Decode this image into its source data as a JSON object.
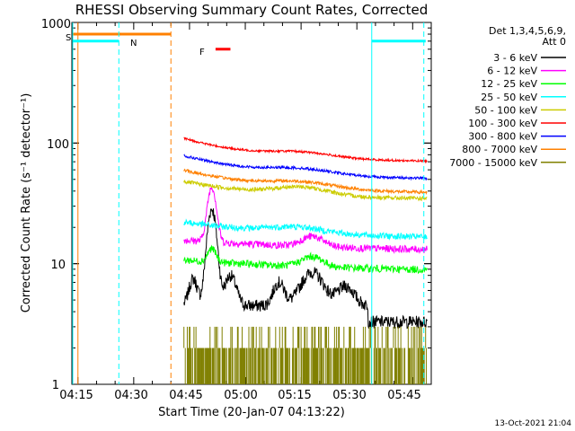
{
  "chart_data": {
    "type": "line",
    "title": "RHESSI Observing Summary Count Rates, Corrected",
    "xlabel": "Start Time (20-Jan-07 04:13:22)",
    "ylabel": "Corrected Count Rate (s⁻¹ detector⁻¹)",
    "x_tick_labels": [
      "04:15",
      "04:30",
      "04:45",
      "05:00",
      "05:15",
      "05:30",
      "05:45"
    ],
    "x_ticks_min": [
      15,
      30,
      45,
      60,
      75,
      90,
      105
    ],
    "x_range_min": [
      13.37,
      110
    ],
    "y_scale": "log",
    "y_range": [
      1,
      1000
    ],
    "y_tick_labels": [
      "1",
      "10",
      "100",
      "1000"
    ],
    "legend_header": [
      "Det 1,3,4,5,6,9,",
      "Att 0"
    ],
    "legend_placement": "right",
    "footer": "13-Oct-2021 21:04",
    "annotations": {
      "S": "S",
      "N": "N",
      "F": "F"
    },
    "colors": {
      "3-6": "#000000",
      "6-12": "#ff00ff",
      "12-25": "#00ff00",
      "25-50": "#00ffff",
      "50-100": "#cccc00",
      "100-300": "#ff0000",
      "300-800": "#0000ff",
      "800-7000": "#ff8000",
      "7000-15000": "#808000",
      "orange_line": "#ff8000",
      "cyan_line": "#00ffff"
    },
    "series": [
      {
        "name": "3 - 6 keV",
        "key": "3-6",
        "t_start": 43.5,
        "t_end": 109,
        "base": 6.0,
        "peak": 28,
        "note": "bursty, 4-9 range"
      },
      {
        "name": "6 - 12 keV",
        "key": "6-12",
        "t_start": 43.5,
        "t_end": 109,
        "base": 16,
        "peak": 44,
        "note": "declines to ~13"
      },
      {
        "name": "12 - 25 keV",
        "key": "12-25",
        "t_start": 43.5,
        "t_end": 109,
        "base": 11,
        "peak": 14,
        "note": "declines to ~9"
      },
      {
        "name": "25 - 50 keV",
        "key": "25-50",
        "t_start": 43.5,
        "t_end": 109,
        "base": 20,
        "peak": 25,
        "note": "declines to ~17"
      },
      {
        "name": "50 - 100 keV",
        "key": "50-100",
        "t_start": 43.5,
        "t_end": 109,
        "base": 40,
        "peak": 45,
        "note": "declines to ~35"
      },
      {
        "name": "100 - 300 keV",
        "key": "100-300",
        "t_start": 43.5,
        "t_end": 109,
        "base": 100,
        "peak": 110,
        "note": "declines to ~70"
      },
      {
        "name": "300 - 800 keV",
        "key": "300-800",
        "t_start": 43.5,
        "t_end": 109,
        "base": 75,
        "peak": 80,
        "note": "declines to ~50"
      },
      {
        "name": "800 - 7000 keV",
        "key": "800-7000",
        "t_start": 43.5,
        "t_end": 109,
        "base": 55,
        "peak": 60,
        "note": "declines to ~38"
      },
      {
        "name": "7000 - 15000 keV",
        "key": "7000-15000",
        "t_start": 43.5,
        "t_end": 109,
        "base": 2.0,
        "peak": 3.0,
        "note": "digitized 1-3 band"
      }
    ],
    "flags": {
      "saa_orange_level": 800,
      "night_cyan_level": 700,
      "flare_marker_t": [
        52,
        56
      ],
      "flare_marker_level": 600,
      "vertical_cyan_dashed_t": [
        26,
        108
      ],
      "vertical_orange_dashed_t": [
        40
      ],
      "vertical_cyan_solid_t": [
        94
      ]
    }
  }
}
